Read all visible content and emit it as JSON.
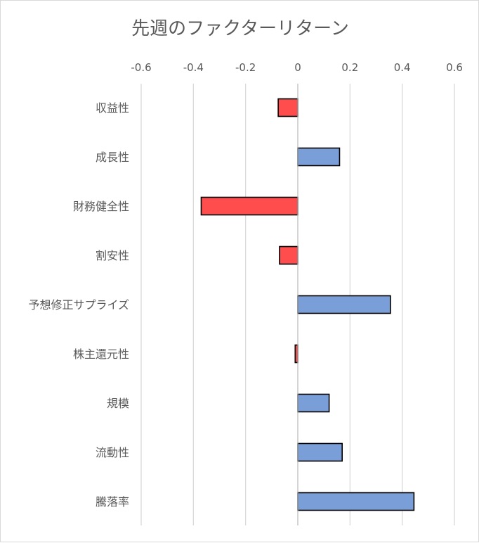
{
  "chart_data": {
    "type": "bar",
    "orientation": "horizontal",
    "title": "先週のファクターリターン",
    "categories": [
      "収益性",
      "成長性",
      "財務健全性",
      "割安性",
      "予想修正サプライズ",
      "株主還元性",
      "規模",
      "流動性",
      "騰落率"
    ],
    "values": [
      -0.075,
      0.16,
      -0.37,
      -0.07,
      0.355,
      -0.01,
      0.12,
      0.17,
      0.445
    ],
    "x_axis": {
      "position": "top",
      "range": [
        -0.6,
        0.6
      ],
      "ticks": [
        -0.6,
        -0.4,
        -0.2,
        0,
        0.2,
        0.4,
        0.6
      ],
      "tick_labels": [
        "-0.6",
        "-0.4",
        "-0.2",
        "0",
        "0.2",
        "0.4",
        "0.6"
      ]
    },
    "grid": true,
    "legend": "none",
    "colors": {
      "positive": "#7a9fd8",
      "negative": "#ff4c4c",
      "bar_outline": "#000000",
      "grid": "#d9d9d9",
      "text": "#595959"
    }
  }
}
